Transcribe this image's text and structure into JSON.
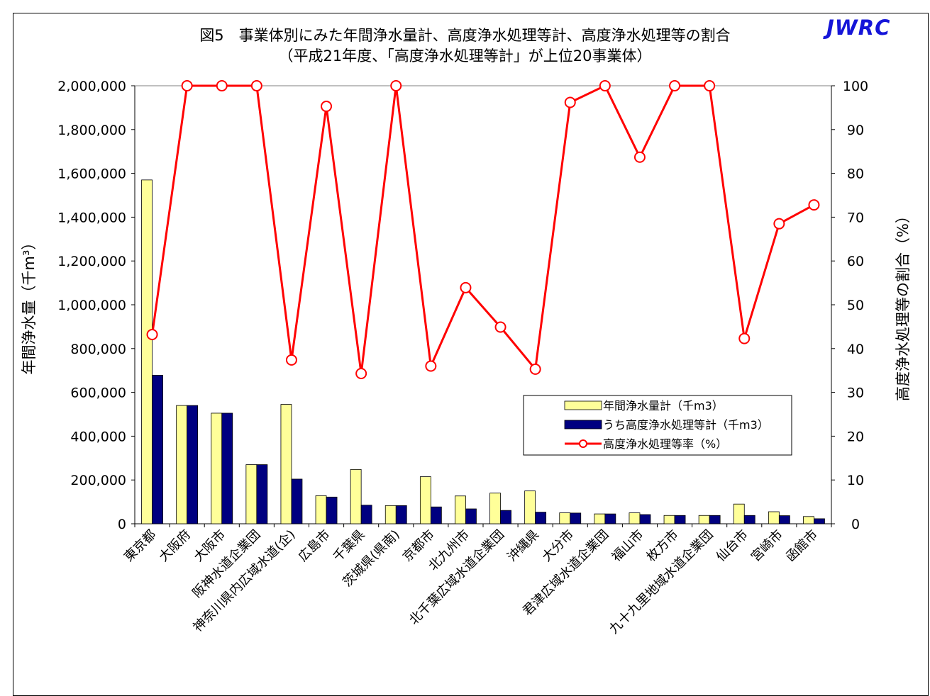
{
  "logo": "JWRC",
  "chart_data": {
    "type": "bar",
    "title": "図5　事業体別にみた年間浄水量計、高度浄水処理等計、高度浄水処理等の割合",
    "subtitle": "（平成21年度、「高度浄水処理等計」が上位20事業体）",
    "ylabel": "年間浄水量（千m³）",
    "y2label": "高度浄水処理等の割合（%）",
    "ylim": [
      0,
      2000000
    ],
    "y2lim": [
      0,
      100
    ],
    "yticks": [
      "0",
      "200,000",
      "400,000",
      "600,000",
      "800,000",
      "1,000,000",
      "1,200,000",
      "1,400,000",
      "1,600,000",
      "1,800,000",
      "2,000,000"
    ],
    "y2ticks": [
      "0",
      "10",
      "20",
      "30",
      "40",
      "50",
      "60",
      "70",
      "80",
      "90",
      "100"
    ],
    "grid": "top line only",
    "legend_position": "right-middle",
    "categories": [
      "東京都",
      "大阪府",
      "大阪市",
      "阪神水道企業団",
      "神奈川県内広域水道(企)",
      "広島市",
      "千葉県",
      "茨城県(県南)",
      "京都市",
      "北九州市",
      "北千葉広域水道企業団",
      "沖縄県",
      "大分市",
      "君津広域水道企業団",
      "福山市",
      "枚方市",
      "九十九里地域水道企業団",
      "仙台市",
      "宮崎市",
      "函館市"
    ],
    "series": [
      {
        "name": "年間浄水量計（千m3）",
        "type": "bar",
        "axis": "left",
        "color": "#ffff99",
        "values": [
          1570000,
          540000,
          505000,
          270000,
          545000,
          128000,
          248000,
          83000,
          215000,
          127000,
          140000,
          150000,
          50000,
          45000,
          50000,
          38000,
          38000,
          90000,
          55000,
          33000
        ]
      },
      {
        "name": "うち高度浄水処理等計（千m3）",
        "type": "bar",
        "axis": "left",
        "color": "#000080",
        "values": [
          678000,
          540000,
          505000,
          270000,
          204000,
          122000,
          85000,
          83000,
          77000,
          68000,
          61000,
          53000,
          49000,
          45000,
          42000,
          38000,
          38000,
          38000,
          37000,
          23000
        ]
      },
      {
        "name": "高度浄水処理等率（%）",
        "type": "line",
        "axis": "right",
        "color": "#ff0000",
        "values": [
          43.2,
          100,
          100,
          100,
          37.4,
          95.3,
          34.3,
          100,
          36.0,
          53.9,
          44.9,
          35.3,
          96.2,
          100,
          83.7,
          100,
          100,
          42.3,
          68.5,
          72.8
        ]
      }
    ]
  }
}
